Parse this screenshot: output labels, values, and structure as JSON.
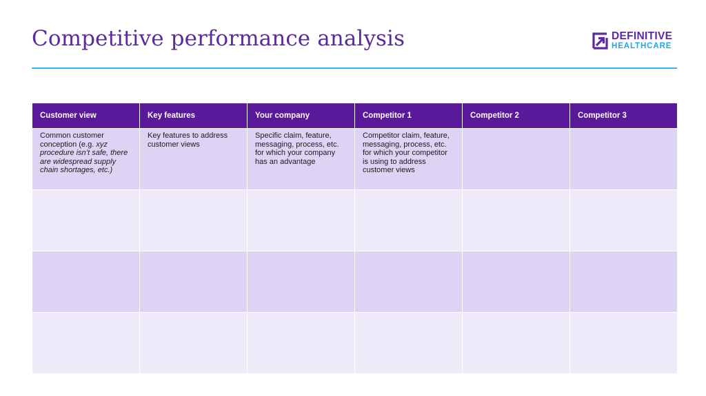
{
  "page": {
    "title": "Competitive performance analysis"
  },
  "logo": {
    "line1": "DEFINITIVE",
    "line2": "HEALTHCARE",
    "primary_color": "#5b2a9c",
    "secondary_color": "#1aa9e6",
    "icon": "arrow-square-logo-icon"
  },
  "colors": {
    "header_bg": "#5a189a",
    "row_dark": "#dfd3f5",
    "row_light": "#eeeaf9",
    "rule": "#35b3ea"
  },
  "table": {
    "headers": [
      "Customer view",
      "Key features",
      "Your company",
      "Competitor 1",
      "Competitor 2",
      "Competitor 3"
    ],
    "row1": {
      "customer_view": {
        "plain": "Common customer conception (e.g. ",
        "italic": "xyz procedure isn’t safe, there are widespread supply chain shortages, etc.)"
      },
      "key_features": "Key features to address customer views",
      "your_company": "Specific claim, feature, messaging, process, etc. for which your company has an advantage",
      "competitor_1": "Competitor claim, feature, messaging, process, etc. for which your competitor is using to address customer views",
      "competitor_2": "",
      "competitor_3": ""
    }
  }
}
